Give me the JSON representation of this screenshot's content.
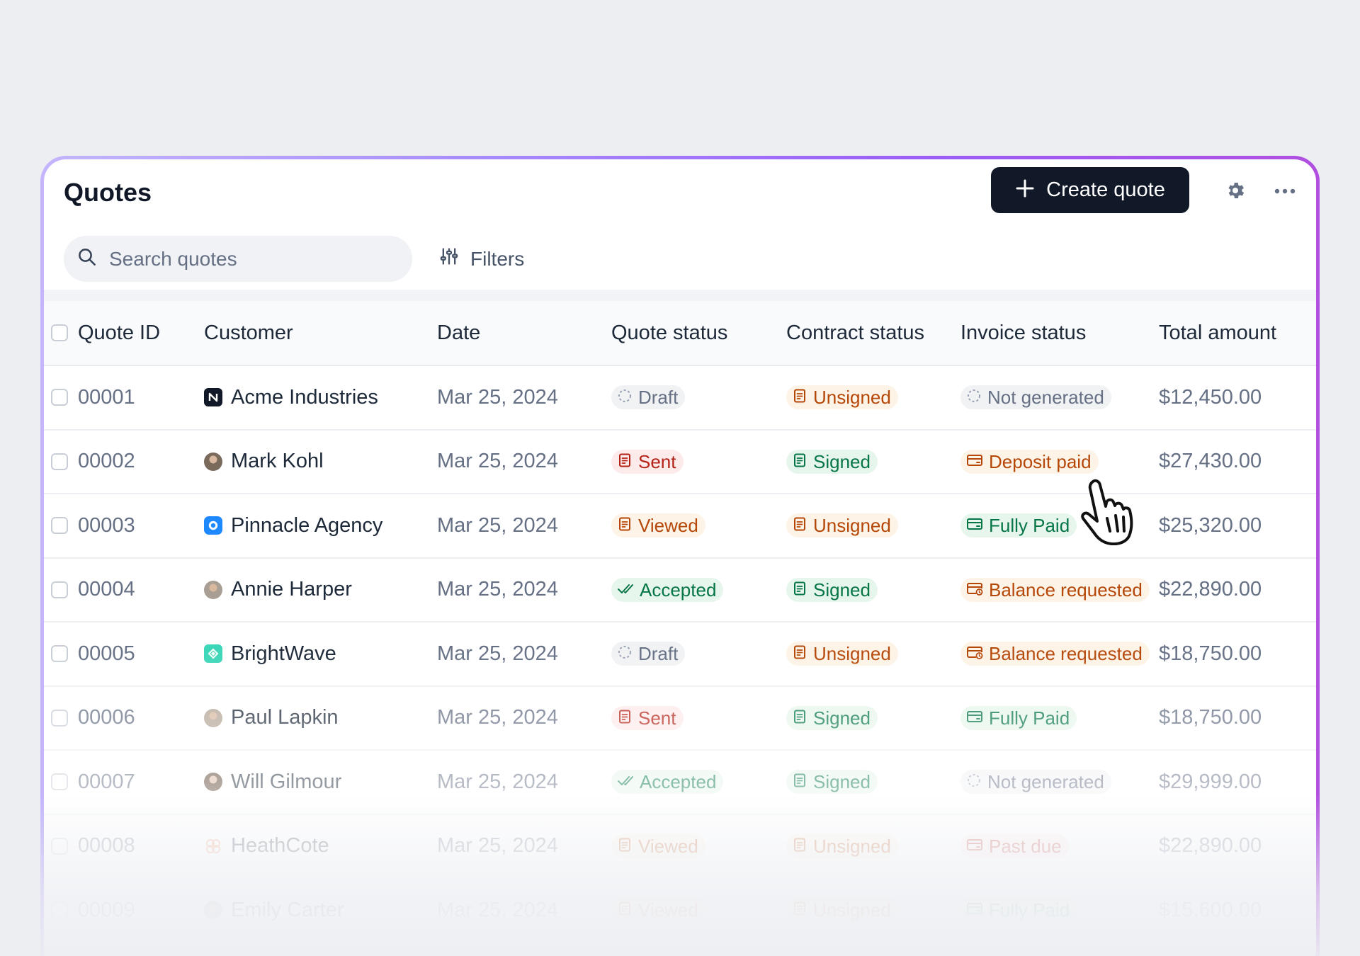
{
  "header": {
    "title": "Quotes",
    "create_label": "Create quote"
  },
  "toolbar": {
    "search_placeholder": "Search quotes",
    "filters_label": "Filters"
  },
  "table": {
    "columns": [
      "Quote ID",
      "Customer",
      "Date",
      "Quote status",
      "Contract status",
      "Invoice status",
      "Total amount"
    ],
    "rows": [
      {
        "id": "00001",
        "customer": "Acme Industries",
        "avatar": "acme-logo",
        "date": "Mar 25, 2024",
        "quote_status": "Draft",
        "contract_status": "Unsigned",
        "invoice_status": "Not generated",
        "total": "$12,450.00"
      },
      {
        "id": "00002",
        "customer": "Mark Kohl",
        "avatar": "person",
        "date": "Mar 25, 2024",
        "quote_status": "Sent",
        "contract_status": "Signed",
        "invoice_status": "Deposit paid",
        "total": "$27,430.00"
      },
      {
        "id": "00003",
        "customer": "Pinnacle Agency",
        "avatar": "pinnacle-logo",
        "date": "Mar 25, 2024",
        "quote_status": "Viewed",
        "contract_status": "Unsigned",
        "invoice_status": "Fully Paid",
        "total": "$25,320.00"
      },
      {
        "id": "00004",
        "customer": "Annie Harper",
        "avatar": "person",
        "date": "Mar 25, 2024",
        "quote_status": "Accepted",
        "contract_status": "Signed",
        "invoice_status": "Balance requested",
        "total": "$22,890.00"
      },
      {
        "id": "00005",
        "customer": "BrightWave",
        "avatar": "brightwave-logo",
        "date": "Mar 25, 2024",
        "quote_status": "Draft",
        "contract_status": "Unsigned",
        "invoice_status": "Balance requested",
        "total": "$18,750.00"
      },
      {
        "id": "00006",
        "customer": "Paul Lapkin",
        "avatar": "person",
        "date": "Mar 25, 2024",
        "quote_status": "Sent",
        "contract_status": "Signed",
        "invoice_status": "Fully Paid",
        "total": "$18,750.00"
      },
      {
        "id": "00007",
        "customer": "Will Gilmour",
        "avatar": "person",
        "date": "Mar 25, 2024",
        "quote_status": "Accepted",
        "contract_status": "Signed",
        "invoice_status": "Not generated",
        "total": "$29,999.00"
      },
      {
        "id": "00008",
        "customer": "HeathCote",
        "avatar": "heathcote-logo",
        "date": "Mar 25, 2024",
        "quote_status": "Viewed",
        "contract_status": "Unsigned",
        "invoice_status": "Past due",
        "total": "$22,890.00"
      },
      {
        "id": "00009",
        "customer": "Emily Carter",
        "avatar": "person",
        "date": "Mar 25, 2024",
        "quote_status": "Viewed",
        "contract_status": "Unsigned",
        "invoice_status": "Fully Paid",
        "total": "$15,600.00"
      }
    ]
  },
  "colors": {
    "accent_dark": "#111827",
    "border_gradient_start": "#c4b5fd",
    "border_gradient_end": "#b04fe0",
    "status_red": "#b42318",
    "status_orange": "#b54708",
    "status_green": "#067647",
    "status_gray": "#667085"
  },
  "icons": {
    "create": "plus-icon",
    "settings": "gear-icon",
    "more": "more-horizontal-icon",
    "search": "search-icon",
    "filters": "sliders-icon",
    "pointer": "hand-pointer-cursor"
  }
}
